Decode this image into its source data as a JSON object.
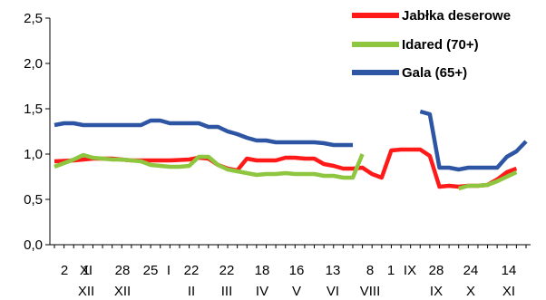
{
  "chart_data": {
    "type": "line",
    "title": "",
    "xlabel": "",
    "ylabel": "",
    "ylim": [
      0,
      2.5
    ],
    "yticks": [
      "0,0",
      "0,5",
      "1,0",
      "1,5",
      "2,0",
      "2,5"
    ],
    "grid": false,
    "legend_position": "top-right",
    "x_tick_labels": [
      {
        "day": "2",
        "month": ""
      },
      {
        "day": "XI",
        "month": ""
      },
      {
        "day": "1",
        "month": "XII"
      },
      {
        "day": "28",
        "month": "XII"
      },
      {
        "day": "25",
        "month": ""
      },
      {
        "day": "I",
        "month": ""
      },
      {
        "day": "22",
        "month": "II"
      },
      {
        "day": "22",
        "month": "III"
      },
      {
        "day": "18",
        "month": "IV"
      },
      {
        "day": "16",
        "month": "V"
      },
      {
        "day": "13",
        "month": "VI"
      },
      {
        "day": "8",
        "month": "VIII"
      },
      {
        "day": "1",
        "month": ""
      },
      {
        "day": "IX",
        "month": ""
      },
      {
        "day": "28",
        "month": "IX"
      },
      {
        "day": "24",
        "month": "X"
      },
      {
        "day": "14",
        "month": "XI"
      }
    ],
    "series": [
      {
        "name": "Jabłka deserowe",
        "color": "#ff1a1a",
        "segments": [
          [
            [
              0,
              0.92
            ],
            [
              2,
              0.93
            ],
            [
              4,
              0.95
            ],
            [
              6,
              0.95
            ],
            [
              8,
              0.93
            ],
            [
              10,
              0.93
            ],
            [
              12,
              0.93
            ],
            [
              14,
              0.94
            ],
            [
              15,
              0.96
            ],
            [
              16,
              0.95
            ],
            [
              17,
              0.88
            ],
            [
              18,
              0.84
            ],
            [
              19,
              0.82
            ],
            [
              20,
              0.95
            ],
            [
              21,
              0.93
            ],
            [
              22,
              0.93
            ],
            [
              23,
              0.93
            ],
            [
              24,
              0.96
            ],
            [
              25,
              0.96
            ],
            [
              26,
              0.95
            ],
            [
              27,
              0.95
            ],
            [
              28,
              0.89
            ],
            [
              29,
              0.87
            ],
            [
              30,
              0.84
            ],
            [
              31,
              0.84
            ],
            [
              32,
              0.85
            ],
            [
              33,
              0.78
            ],
            [
              34,
              0.74
            ],
            [
              35,
              1.04
            ],
            [
              36,
              1.05
            ],
            [
              37,
              1.05
            ],
            [
              38,
              1.05
            ],
            [
              39,
              0.98
            ],
            [
              40,
              0.64
            ],
            [
              41,
              0.65
            ],
            [
              42,
              0.64
            ],
            [
              43,
              0.65
            ],
            [
              44,
              0.65
            ],
            [
              45,
              0.66
            ],
            [
              46,
              0.72
            ],
            [
              47,
              0.8
            ],
            [
              48,
              0.84
            ]
          ]
        ]
      },
      {
        "name": "Idared (70+)",
        "color": "#8ec63f",
        "segments": [
          [
            [
              0,
              0.86
            ],
            [
              1,
              0.9
            ],
            [
              2,
              0.94
            ],
            [
              3,
              0.99
            ],
            [
              4,
              0.96
            ],
            [
              5,
              0.95
            ],
            [
              6,
              0.94
            ],
            [
              7,
              0.94
            ],
            [
              8,
              0.93
            ],
            [
              9,
              0.92
            ],
            [
              10,
              0.88
            ],
            [
              11,
              0.87
            ],
            [
              12,
              0.86
            ],
            [
              13,
              0.86
            ],
            [
              14,
              0.87
            ],
            [
              15,
              0.97
            ],
            [
              16,
              0.97
            ],
            [
              17,
              0.88
            ],
            [
              18,
              0.83
            ],
            [
              19,
              0.81
            ],
            [
              20,
              0.79
            ],
            [
              21,
              0.77
            ],
            [
              22,
              0.78
            ],
            [
              23,
              0.78
            ],
            [
              24,
              0.79
            ],
            [
              25,
              0.78
            ],
            [
              26,
              0.78
            ],
            [
              27,
              0.78
            ],
            [
              28,
              0.76
            ],
            [
              29,
              0.76
            ],
            [
              30,
              0.74
            ],
            [
              31,
              0.74
            ],
            [
              32,
              1.0
            ]
          ],
          [
            [
              42,
              0.62
            ],
            [
              43,
              0.65
            ],
            [
              44,
              0.65
            ],
            [
              45,
              0.66
            ],
            [
              46,
              0.7
            ],
            [
              47,
              0.75
            ],
            [
              48,
              0.8
            ]
          ]
        ]
      },
      {
        "name": "Gala (65+)",
        "color": "#2e55a3",
        "segments": [
          [
            [
              0,
              1.32
            ],
            [
              1,
              1.34
            ],
            [
              2,
              1.34
            ],
            [
              3,
              1.32
            ],
            [
              4,
              1.32
            ],
            [
              5,
              1.32
            ],
            [
              6,
              1.32
            ],
            [
              7,
              1.32
            ],
            [
              8,
              1.32
            ],
            [
              9,
              1.32
            ],
            [
              10,
              1.37
            ],
            [
              11,
              1.37
            ],
            [
              12,
              1.34
            ],
            [
              13,
              1.34
            ],
            [
              14,
              1.34
            ],
            [
              15,
              1.34
            ],
            [
              16,
              1.3
            ],
            [
              17,
              1.3
            ],
            [
              18,
              1.25
            ],
            [
              19,
              1.22
            ],
            [
              20,
              1.18
            ],
            [
              21,
              1.15
            ],
            [
              22,
              1.15
            ],
            [
              23,
              1.13
            ],
            [
              24,
              1.13
            ],
            [
              25,
              1.13
            ],
            [
              26,
              1.13
            ],
            [
              27,
              1.13
            ],
            [
              28,
              1.12
            ],
            [
              29,
              1.1
            ],
            [
              30,
              1.1
            ],
            [
              31,
              1.1
            ]
          ],
          [
            [
              38,
              1.47
            ],
            [
              39,
              1.44
            ],
            [
              40,
              0.85
            ],
            [
              41,
              0.85
            ],
            [
              42,
              0.83
            ],
            [
              43,
              0.85
            ],
            [
              44,
              0.85
            ],
            [
              45,
              0.85
            ],
            [
              46,
              0.85
            ],
            [
              47,
              0.97
            ],
            [
              48,
              1.03
            ],
            [
              49,
              1.14
            ]
          ]
        ]
      }
    ],
    "x_index_max": 49
  }
}
